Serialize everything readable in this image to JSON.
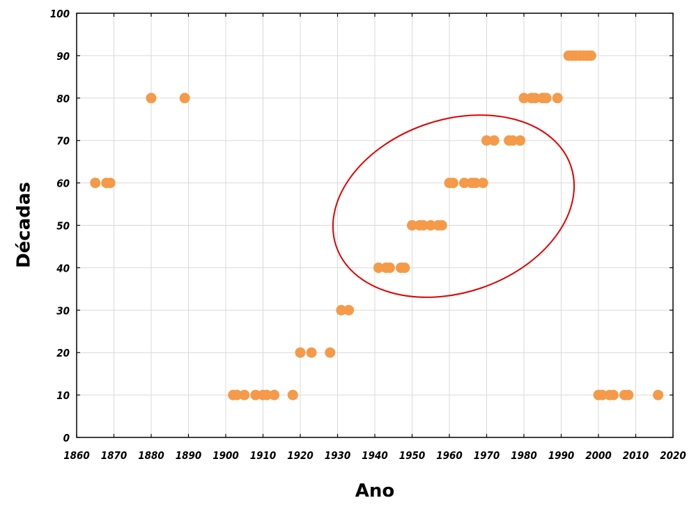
{
  "chart_data": {
    "type": "scatter",
    "title": "",
    "xlabel": "Ano",
    "ylabel": "Décadas",
    "xlim": [
      1860,
      2020
    ],
    "ylim": [
      0,
      100
    ],
    "x_ticks": [
      "1860",
      "1870",
      "1880",
      "1890",
      "1900",
      "1910",
      "1920",
      "1930",
      "1940",
      "1950",
      "1960",
      "1970",
      "1980",
      "1990",
      "2000",
      "2010",
      "2020"
    ],
    "y_ticks": [
      "0",
      "10",
      "20",
      "30",
      "40",
      "50",
      "60",
      "70",
      "80",
      "90",
      "100"
    ],
    "grid": true,
    "marker_color": "#F59A48",
    "annotation_color": "#E00000",
    "points": [
      {
        "x": 1865,
        "y": 60
      },
      {
        "x": 1868,
        "y": 60
      },
      {
        "x": 1869,
        "y": 60
      },
      {
        "x": 1880,
        "y": 80
      },
      {
        "x": 1889,
        "y": 80
      },
      {
        "x": 1902,
        "y": 10
      },
      {
        "x": 1903,
        "y": 10
      },
      {
        "x": 1905,
        "y": 10
      },
      {
        "x": 1908,
        "y": 10
      },
      {
        "x": 1910,
        "y": 10
      },
      {
        "x": 1911,
        "y": 10
      },
      {
        "x": 1913,
        "y": 10
      },
      {
        "x": 1918,
        "y": 10
      },
      {
        "x": 1920,
        "y": 20
      },
      {
        "x": 1923,
        "y": 20
      },
      {
        "x": 1928,
        "y": 20
      },
      {
        "x": 1931,
        "y": 30
      },
      {
        "x": 1933,
        "y": 30
      },
      {
        "x": 1941,
        "y": 40
      },
      {
        "x": 1943,
        "y": 40
      },
      {
        "x": 1944,
        "y": 40
      },
      {
        "x": 1947,
        "y": 40
      },
      {
        "x": 1948,
        "y": 40
      },
      {
        "x": 1950,
        "y": 50
      },
      {
        "x": 1952,
        "y": 50
      },
      {
        "x": 1953,
        "y": 50
      },
      {
        "x": 1955,
        "y": 50
      },
      {
        "x": 1957,
        "y": 50
      },
      {
        "x": 1958,
        "y": 50
      },
      {
        "x": 1960,
        "y": 60
      },
      {
        "x": 1961,
        "y": 60
      },
      {
        "x": 1964,
        "y": 60
      },
      {
        "x": 1966,
        "y": 60
      },
      {
        "x": 1967,
        "y": 60
      },
      {
        "x": 1969,
        "y": 60
      },
      {
        "x": 1970,
        "y": 70
      },
      {
        "x": 1972,
        "y": 70
      },
      {
        "x": 1976,
        "y": 70
      },
      {
        "x": 1977,
        "y": 70
      },
      {
        "x": 1979,
        "y": 70
      },
      {
        "x": 1980,
        "y": 80
      },
      {
        "x": 1982,
        "y": 80
      },
      {
        "x": 1983,
        "y": 80
      },
      {
        "x": 1985,
        "y": 80
      },
      {
        "x": 1986,
        "y": 80
      },
      {
        "x": 1989,
        "y": 80
      },
      {
        "x": 1992,
        "y": 90
      },
      {
        "x": 1993,
        "y": 90
      },
      {
        "x": 1994,
        "y": 90
      },
      {
        "x": 1995,
        "y": 90
      },
      {
        "x": 1996,
        "y": 90
      },
      {
        "x": 1997,
        "y": 90
      },
      {
        "x": 1998,
        "y": 90
      },
      {
        "x": 2000,
        "y": 10
      },
      {
        "x": 2001,
        "y": 10
      },
      {
        "x": 2003,
        "y": 10
      },
      {
        "x": 2004,
        "y": 10
      },
      {
        "x": 2007,
        "y": 10
      },
      {
        "x": 2008,
        "y": 10
      },
      {
        "x": 2016,
        "y": 10
      }
    ]
  }
}
